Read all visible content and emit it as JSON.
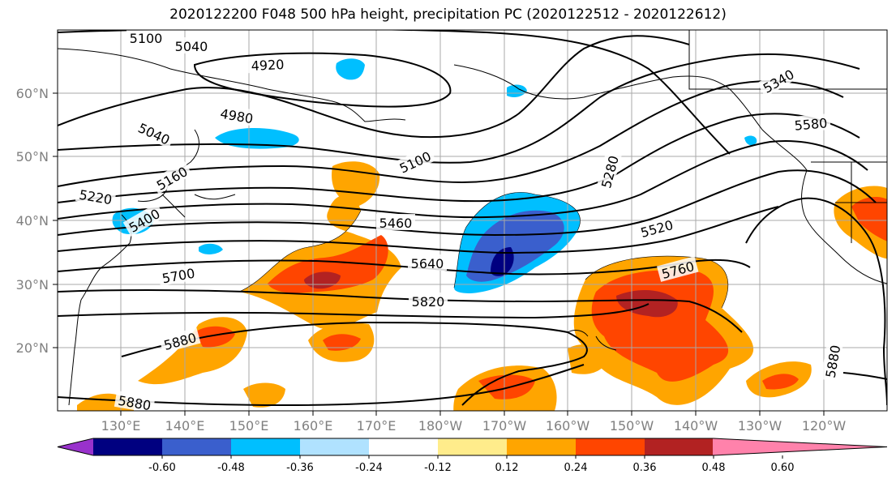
{
  "title": "2020122200 F048 500 hPa height, precipitation PC (2020122512 - 2020122612)",
  "lat_labels": [
    "60°N",
    "50°N",
    "40°N",
    "30°N",
    "20°N"
  ],
  "lon_labels": [
    "130°E",
    "140°E",
    "150°E",
    "160°E",
    "170°E",
    "180°W",
    "170°W",
    "160°W",
    "150°W",
    "140°W",
    "130°W",
    "120°W"
  ],
  "contour_labels": [
    "5100",
    "5040",
    "4920",
    "4980",
    "5040",
    "5100",
    "5160",
    "5220",
    "5400",
    "5460",
    "5640",
    "5280",
    "5340",
    "5580",
    "5520",
    "5700",
    "5820",
    "5760",
    "5880",
    "5880",
    "5880"
  ],
  "colorbar": {
    "tick_labels": [
      "-0.60",
      "-0.48",
      "-0.36",
      "-0.24",
      "-0.12",
      "0.12",
      "0.24",
      "0.36",
      "0.48",
      "0.60"
    ],
    "colors": [
      "#9932cc",
      "#000080",
      "#3a5fcd",
      "#00bfff",
      "#b0e2ff",
      "#ffffff",
      "#ffec8b",
      "#ffa500",
      "#ff4500",
      "#b22222",
      "#ff82ab"
    ]
  }
}
